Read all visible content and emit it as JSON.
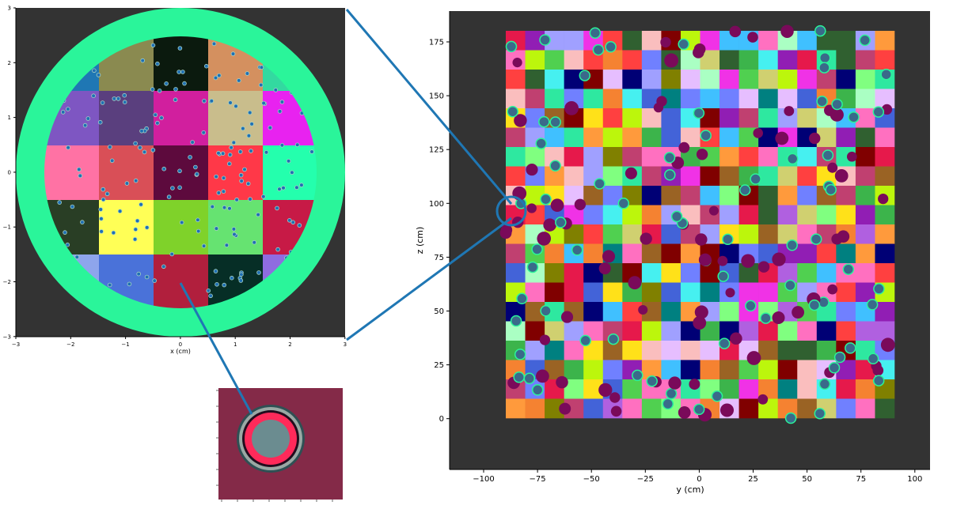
{
  "figure": {
    "zoom_line_color": "#1f77b4",
    "background_color": "#333333"
  },
  "left_panel": {
    "xlabel": "x (cm)",
    "xticks": [
      "−3",
      "−2",
      "−1",
      "0",
      "1",
      "2",
      "3"
    ],
    "yticks": [
      "3",
      "2",
      "1",
      "0",
      "−1",
      "−2",
      "−3"
    ],
    "ring_color": "#2af59a",
    "grid_colors": [
      [
        "#1f77b4",
        "#8a8a50",
        "#0b1a0e",
        "#d4905f",
        "#33d9a0"
      ],
      [
        "#7e56c2",
        "#5a3f7e",
        "#d11f9e",
        "#c9bd8c",
        "#e822f0"
      ],
      [
        "#ff72a4",
        "#d94f57",
        "#5d0a3d",
        "#ff3848",
        "#24ffad"
      ],
      [
        "#293e25",
        "#ffff56",
        "#7fd22a",
        "#66e371",
        "#c71a46"
      ],
      [
        "#8ea5ec",
        "#4a72d9",
        "#b11f3d",
        "#062e26",
        "#8f6ce0"
      ]
    ]
  },
  "right_panel": {
    "xlabel": "y (cm)",
    "ylabel": "z (cm)",
    "xticks": [
      "−100",
      "−75",
      "−50",
      "−25",
      "0",
      "25",
      "50",
      "75",
      "100"
    ],
    "yticks": [
      "175",
      "150",
      "125",
      "100",
      "75",
      "50",
      "25",
      "0"
    ]
  },
  "inset": {
    "background_color": "#842a48",
    "pellet_colors": [
      "#2f5054",
      "#9aa8a4",
      "#230d1e",
      "#ff2a5a",
      "#6b8c90"
    ]
  }
}
